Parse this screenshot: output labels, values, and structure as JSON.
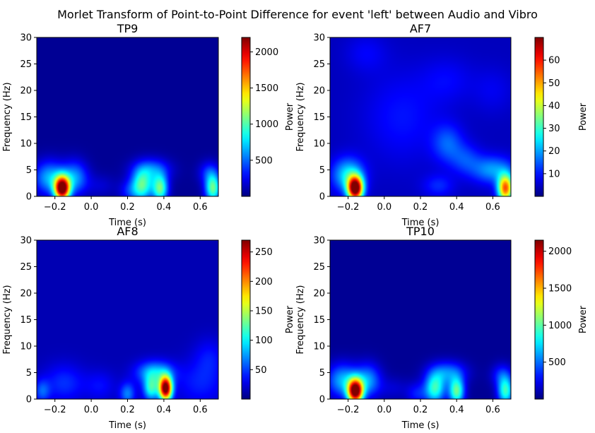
{
  "chart_data": {
    "type": "heatmap",
    "suptitle": "Morlet Transform of Point-to-Point Difference for event 'left' between Audio and Vibro",
    "colormap": "jet",
    "x_range": [
      -0.3,
      0.7
    ],
    "y_range": [
      0,
      30
    ],
    "panels": [
      {
        "title": "TP9",
        "xlabel": "Time (s)",
        "ylabel": "Frequency (Hz)",
        "colorbar_label": "Power",
        "xticks": [
          -0.2,
          0.0,
          0.2,
          0.4,
          0.6
        ],
        "xtick_labels": [
          "−0.2",
          "0.0",
          "0.2",
          "0.4",
          "0.6"
        ],
        "yticks": [
          0,
          5,
          10,
          15,
          20,
          25,
          30
        ],
        "yticks_labels": [
          "0",
          "5",
          "10",
          "15",
          "20",
          "25",
          "30"
        ],
        "cbar_range": [
          0,
          2200
        ],
        "cbar_ticks": [
          500,
          1000,
          1500,
          2000
        ],
        "cbar_tick_labels": [
          "500",
          "1000",
          "1500",
          "2000"
        ],
        "baseline": 0.02,
        "blobs": [
          {
            "t": -0.16,
            "f": 1.5,
            "st": 0.03,
            "sf": 1.6,
            "a": 1.0
          },
          {
            "t": -0.23,
            "f": 3.5,
            "st": 0.06,
            "sf": 2.2,
            "a": 0.28
          },
          {
            "t": -0.09,
            "f": 3.5,
            "st": 0.05,
            "sf": 2.2,
            "a": 0.25
          },
          {
            "t": 0.28,
            "f": 2.0,
            "st": 0.04,
            "sf": 2.0,
            "a": 0.42
          },
          {
            "t": 0.38,
            "f": 1.5,
            "st": 0.03,
            "sf": 1.8,
            "a": 0.45
          },
          {
            "t": 0.33,
            "f": 5.0,
            "st": 0.07,
            "sf": 1.5,
            "a": 0.22
          },
          {
            "t": 0.21,
            "f": 1.0,
            "st": 0.04,
            "sf": 1.5,
            "a": 0.12
          },
          {
            "t": 0.67,
            "f": 1.5,
            "st": 0.03,
            "sf": 1.8,
            "a": 0.45
          },
          {
            "t": 0.65,
            "f": 4.5,
            "st": 0.04,
            "sf": 1.5,
            "a": 0.15
          },
          {
            "t": 0.05,
            "f": 2.0,
            "st": 0.06,
            "sf": 1.5,
            "a": 0.06
          }
        ]
      },
      {
        "title": "AF7",
        "xlabel": "Time (s)",
        "ylabel": "Frequency (Hz)",
        "colorbar_label": "Power",
        "xticks": [
          -0.2,
          0.0,
          0.2,
          0.4,
          0.6
        ],
        "xtick_labels": [
          "−0.2",
          "0.0",
          "0.2",
          "0.4",
          "0.6"
        ],
        "yticks": [
          0,
          5,
          10,
          15,
          20,
          25,
          30
        ],
        "yticks_labels": [
          "0",
          "5",
          "10",
          "15",
          "20",
          "25",
          "30"
        ],
        "cbar_range": [
          0,
          70
        ],
        "cbar_ticks": [
          10,
          20,
          30,
          40,
          50,
          60
        ],
        "cbar_tick_labels": [
          "10",
          "20",
          "30",
          "40",
          "50",
          "60"
        ],
        "baseline": 0.06,
        "blobs": [
          {
            "t": -0.16,
            "f": 1.5,
            "st": 0.03,
            "sf": 1.6,
            "a": 1.0
          },
          {
            "t": -0.2,
            "f": 4.0,
            "st": 0.06,
            "sf": 2.2,
            "a": 0.3
          },
          {
            "t": 0.67,
            "f": 1.5,
            "st": 0.03,
            "sf": 1.8,
            "a": 0.72
          },
          {
            "t": 0.6,
            "f": 5.0,
            "st": 0.08,
            "sf": 1.8,
            "a": 0.22
          },
          {
            "t": 0.35,
            "f": 10.0,
            "st": 0.06,
            "sf": 2.5,
            "a": 0.15
          },
          {
            "t": 0.45,
            "f": 7.0,
            "st": 0.06,
            "sf": 2.0,
            "a": 0.12
          },
          {
            "t": 0.3,
            "f": 2.0,
            "st": 0.06,
            "sf": 1.5,
            "a": 0.1
          },
          {
            "t": 0.1,
            "f": 15.0,
            "st": 0.15,
            "sf": 6.0,
            "a": 0.08
          },
          {
            "t": 0.35,
            "f": 22.0,
            "st": 0.1,
            "sf": 3.0,
            "a": 0.06
          },
          {
            "t": -0.1,
            "f": 27.0,
            "st": 0.08,
            "sf": 2.5,
            "a": 0.06
          },
          {
            "t": 0.6,
            "f": 20.0,
            "st": 0.08,
            "sf": 3.0,
            "a": 0.05
          }
        ]
      },
      {
        "title": "AF8",
        "xlabel": "Time (s)",
        "ylabel": "Frequency (Hz)",
        "colorbar_label": "Power",
        "xticks": [
          -0.2,
          0.0,
          0.2,
          0.4,
          0.6
        ],
        "xtick_labels": [
          "−0.2",
          "0.0",
          "0.2",
          "0.4",
          "0.6"
        ],
        "yticks": [
          0,
          5,
          10,
          15,
          20,
          25,
          30
        ],
        "yticks_labels": [
          "0",
          "5",
          "10",
          "15",
          "20",
          "25",
          "30"
        ],
        "cbar_range": [
          0,
          270
        ],
        "cbar_ticks": [
          50,
          100,
          150,
          200,
          250
        ],
        "cbar_tick_labels": [
          "50",
          "100",
          "150",
          "200",
          "250"
        ],
        "baseline": 0.05,
        "blobs": [
          {
            "t": 0.41,
            "f": 2.0,
            "st": 0.025,
            "sf": 1.6,
            "a": 1.0
          },
          {
            "t": 0.33,
            "f": 2.0,
            "st": 0.03,
            "sf": 1.6,
            "a": 0.35
          },
          {
            "t": 0.35,
            "f": 5.0,
            "st": 0.07,
            "sf": 1.5,
            "a": 0.28
          },
          {
            "t": 0.2,
            "f": 1.0,
            "st": 0.03,
            "sf": 1.5,
            "a": 0.2
          },
          {
            "t": -0.15,
            "f": 3.0,
            "st": 0.08,
            "sf": 2.5,
            "a": 0.12
          },
          {
            "t": -0.27,
            "f": 1.5,
            "st": 0.03,
            "sf": 1.5,
            "a": 0.15
          },
          {
            "t": 0.6,
            "f": 3.0,
            "st": 0.1,
            "sf": 3.0,
            "a": 0.1
          },
          {
            "t": 0.65,
            "f": 8.0,
            "st": 0.06,
            "sf": 2.5,
            "a": 0.08
          },
          {
            "t": 0.05,
            "f": 2.5,
            "st": 0.06,
            "sf": 2.0,
            "a": 0.08
          }
        ]
      },
      {
        "title": "TP10",
        "xlabel": "Time (s)",
        "ylabel": "Frequency (Hz)",
        "colorbar_label": "Power",
        "xticks": [
          -0.2,
          0.0,
          0.2,
          0.4,
          0.6
        ],
        "xtick_labels": [
          "−0.2",
          "0.0",
          "0.2",
          "0.4",
          "0.6"
        ],
        "yticks": [
          0,
          5,
          10,
          15,
          20,
          25,
          30
        ],
        "yticks_labels": [
          "0",
          "5",
          "10",
          "15",
          "20",
          "25",
          "30"
        ],
        "cbar_range": [
          0,
          2150
        ],
        "cbar_ticks": [
          500,
          1000,
          1500,
          2000
        ],
        "cbar_tick_labels": [
          "500",
          "1000",
          "1500",
          "2000"
        ],
        "baseline": 0.02,
        "blobs": [
          {
            "t": -0.16,
            "f": 1.5,
            "st": 0.03,
            "sf": 1.6,
            "a": 1.0
          },
          {
            "t": -0.23,
            "f": 3.5,
            "st": 0.06,
            "sf": 2.2,
            "a": 0.28
          },
          {
            "t": -0.09,
            "f": 3.5,
            "st": 0.05,
            "sf": 2.2,
            "a": 0.25
          },
          {
            "t": 0.28,
            "f": 2.0,
            "st": 0.04,
            "sf": 2.0,
            "a": 0.4
          },
          {
            "t": 0.4,
            "f": 1.5,
            "st": 0.03,
            "sf": 1.8,
            "a": 0.45
          },
          {
            "t": 0.35,
            "f": 5.0,
            "st": 0.07,
            "sf": 1.5,
            "a": 0.22
          },
          {
            "t": 0.18,
            "f": 1.0,
            "st": 0.04,
            "sf": 1.5,
            "a": 0.12
          },
          {
            "t": 0.67,
            "f": 1.5,
            "st": 0.03,
            "sf": 1.8,
            "a": 0.4
          },
          {
            "t": 0.65,
            "f": 4.5,
            "st": 0.04,
            "sf": 1.5,
            "a": 0.15
          },
          {
            "t": 0.05,
            "f": 2.0,
            "st": 0.06,
            "sf": 1.5,
            "a": 0.06
          }
        ]
      }
    ]
  }
}
